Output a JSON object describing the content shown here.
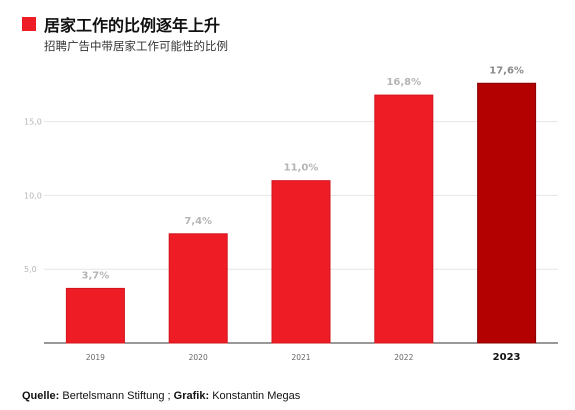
{
  "header": {
    "title": "居家工作的比例逐年上升",
    "subtitle": "招聘广告中带居家工作可能性的比例"
  },
  "source": {
    "quelle_label": "Quelle:",
    "quelle_value": "Bertelsmann Stiftung ;",
    "grafik_label": "Grafik:",
    "grafik_value": "Konstantin Megas"
  },
  "colors": {
    "accent": "#ee1c25",
    "highlight": "#b30000",
    "grid": "#e6e6e6",
    "label": "#b5b5b5"
  },
  "chart_data": {
    "type": "bar",
    "categories": [
      "2019",
      "2020",
      "2021",
      "2022",
      "2023"
    ],
    "values": [
      3.7,
      7.4,
      11.0,
      16.8,
      17.6
    ],
    "value_labels": [
      "3,7%",
      "7,4%",
      "11,0%",
      "16,8%",
      "17,6%"
    ],
    "yticks": [
      5.0,
      10.0,
      15.0
    ],
    "ytick_labels": [
      "5,0",
      "10,0",
      "15,0"
    ],
    "ylim": [
      0,
      18.5
    ],
    "highlight_category": "2023",
    "grid": true
  }
}
